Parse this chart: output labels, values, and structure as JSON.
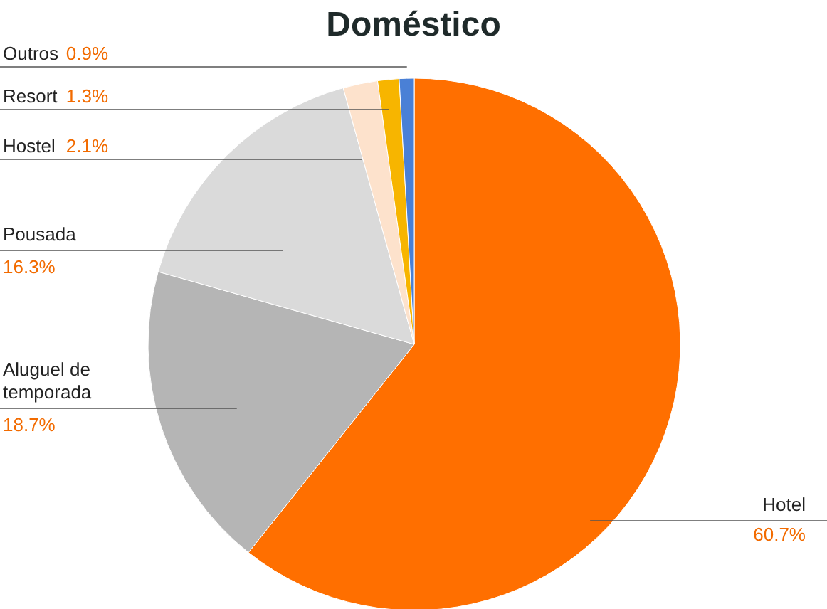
{
  "chart_data": {
    "type": "pie",
    "title": "Doméstico",
    "categories": [
      "Hotel",
      "Aluguel de\ntemporada",
      "Pousada",
      "Hostel",
      "Resort",
      "Outros"
    ],
    "values": [
      60.7,
      18.7,
      16.3,
      2.1,
      1.3,
      0.9
    ],
    "colors": [
      "#ff6f00",
      "#b5b5b5",
      "#dadada",
      "#fde2cc",
      "#f7b500",
      "#4a80d6"
    ],
    "value_labels": [
      "60.7%",
      "18.7%",
      "16.3%",
      "2.1%",
      "1.3%",
      "0.9%"
    ]
  }
}
